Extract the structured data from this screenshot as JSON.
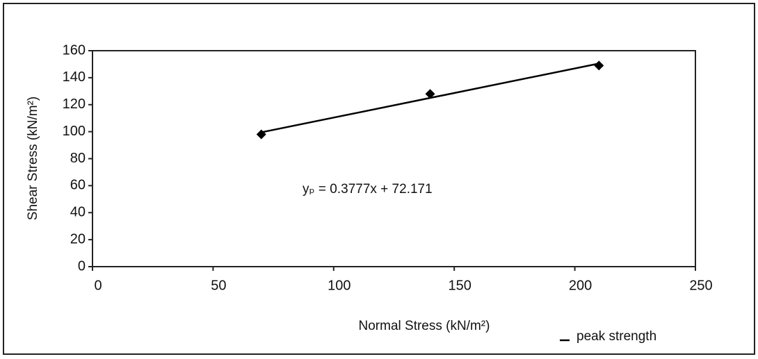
{
  "chart_data": {
    "type": "scatter",
    "x_label": "Normal Stress (kN/m²)",
    "y_label": "Shear Stress (kN/m²)",
    "annotation": "yₚ = 0.3777x + 72.171",
    "series": [
      {
        "name": "peak strength",
        "color": "#000000",
        "x": [
          70,
          140,
          210
        ],
        "values": [
          98,
          128,
          149
        ]
      }
    ],
    "xlim": [
      0,
      250
    ],
    "xticks": [
      0,
      50,
      100,
      150,
      200,
      250
    ],
    "ylim": [
      0,
      160
    ],
    "yticks": [
      0,
      20,
      40,
      60,
      80,
      100,
      120,
      140,
      160
    ],
    "trendline": true,
    "legend": "bottom-right"
  }
}
